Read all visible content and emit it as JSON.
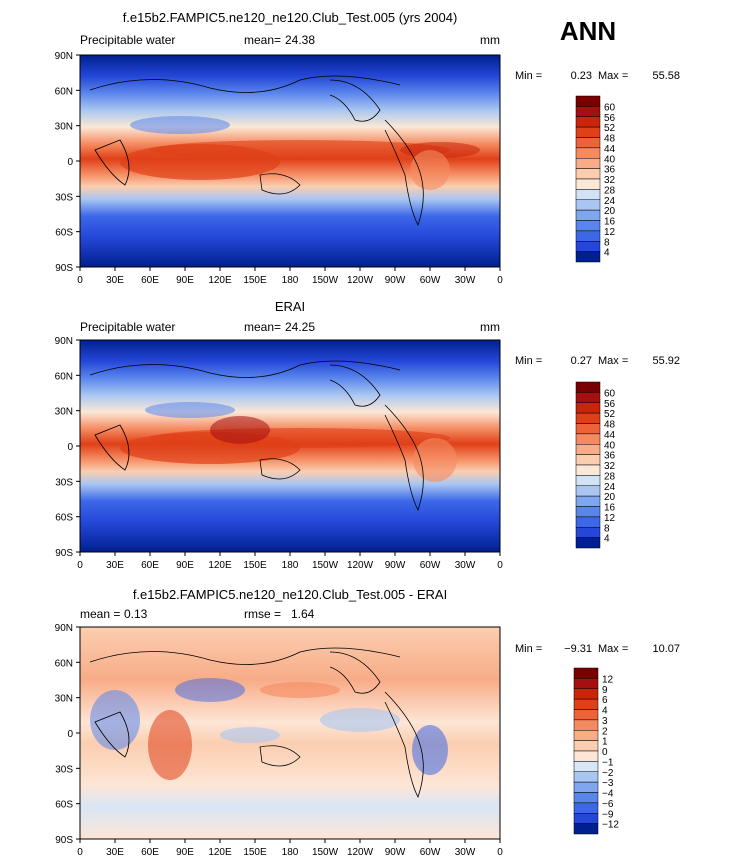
{
  "ann_label": "ANN",
  "chart_data": [
    {
      "type": "heatmap",
      "title": "f.e15b2.FAMPIC5.ne120_ne120.Club_Test.005 (yrs 2004)",
      "field": "Precipitable water",
      "mean_label": "mean=",
      "mean": "24.38",
      "units": "mm",
      "min_label": "Min =",
      "min": "0.23",
      "max_label": "Max =",
      "max": "55.58",
      "x_ticks": [
        "0",
        "30E",
        "60E",
        "90E",
        "120E",
        "150E",
        "180",
        "150W",
        "120W",
        "90W",
        "60W",
        "30W",
        "0"
      ],
      "y_ticks": [
        "90N",
        "60N",
        "30N",
        "0",
        "30S",
        "60S",
        "90S"
      ],
      "colorbar_levels": [
        "60",
        "56",
        "52",
        "48",
        "44",
        "40",
        "36",
        "32",
        "28",
        "24",
        "20",
        "16",
        "12",
        "8",
        "4"
      ],
      "colorbar_colors": [
        "#7a0000",
        "#a50f0f",
        "#c8250a",
        "#e04018",
        "#ee6238",
        "#f58a60",
        "#f8ac88",
        "#fbceb0",
        "#fbe8d6",
        "#d2e3f6",
        "#a9c6f2",
        "#7fa7ef",
        "#5a86ec",
        "#3c68e8",
        "#2547d8",
        "#00208f"
      ]
    },
    {
      "type": "heatmap",
      "title": "ERAI",
      "field": "Precipitable water",
      "mean_label": "mean=",
      "mean": "24.25",
      "units": "mm",
      "min_label": "Min =",
      "min": "0.27",
      "max_label": "Max =",
      "max": "55.92",
      "x_ticks": [
        "0",
        "30E",
        "60E",
        "90E",
        "120E",
        "150E",
        "180",
        "150W",
        "120W",
        "90W",
        "60W",
        "30W",
        "0"
      ],
      "y_ticks": [
        "90N",
        "60N",
        "30N",
        "0",
        "30S",
        "60S",
        "90S"
      ],
      "colorbar_levels": [
        "60",
        "56",
        "52",
        "48",
        "44",
        "40",
        "36",
        "32",
        "28",
        "24",
        "20",
        "16",
        "12",
        "8",
        "4"
      ],
      "colorbar_colors": [
        "#7a0000",
        "#a50f0f",
        "#c8250a",
        "#e04018",
        "#ee6238",
        "#f58a60",
        "#f8ac88",
        "#fbceb0",
        "#fbe8d6",
        "#d2e3f6",
        "#a9c6f2",
        "#7fa7ef",
        "#5a86ec",
        "#3c68e8",
        "#2547d8",
        "#00208f"
      ]
    },
    {
      "type": "heatmap",
      "title": "f.e15b2.FAMPIC5.ne120_ne120.Club_Test.005 - ERAI",
      "mean_label": "mean =",
      "mean": "0.13",
      "rmse_label": "rmse =",
      "rmse": "1.64",
      "min_label": "Min =",
      "min": "−9.31",
      "max_label": "Max =",
      "max": "10.07",
      "x_ticks": [
        "0",
        "30E",
        "60E",
        "90E",
        "120E",
        "150E",
        "180",
        "150W",
        "120W",
        "90W",
        "60W",
        "30W",
        "0"
      ],
      "y_ticks": [
        "90N",
        "60N",
        "30N",
        "0",
        "30S",
        "60S",
        "90S"
      ],
      "colorbar_levels": [
        "12",
        "9",
        "6",
        "4",
        "3",
        "2",
        "1",
        "0",
        "−1",
        "−2",
        "−3",
        "−4",
        "−6",
        "−9",
        "−12"
      ],
      "colorbar_colors": [
        "#7a0000",
        "#a50f0f",
        "#c8250a",
        "#e04018",
        "#ee6238",
        "#f58a60",
        "#f8ac88",
        "#fbceb0",
        "#fde6d6",
        "#d8e6f6",
        "#a9c6f2",
        "#7fa7ef",
        "#5a86ec",
        "#3c68e8",
        "#2547d8",
        "#00208f"
      ]
    }
  ]
}
